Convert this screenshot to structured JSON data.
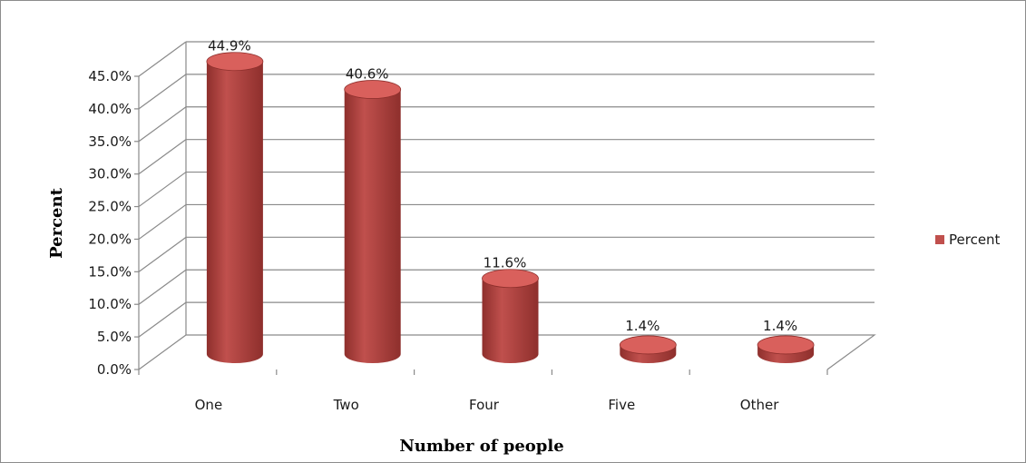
{
  "chart_data": {
    "type": "bar",
    "style": "3d-cylinder",
    "categories": [
      "One",
      "Two",
      "Four",
      "Five",
      "Other"
    ],
    "series": [
      {
        "name": "Percent",
        "values": [
          44.9,
          40.6,
          11.6,
          1.4,
          1.4
        ]
      }
    ],
    "data_labels": [
      "44.9%",
      "40.6%",
      "11.6%",
      "1.4%",
      "1.4%"
    ],
    "xlabel": "Number of people",
    "ylabel": "Percent",
    "ylim": [
      0,
      45
    ],
    "yticks": [
      0,
      5,
      10,
      15,
      20,
      25,
      30,
      35,
      40,
      45
    ],
    "ytick_labels": [
      "0.0%",
      "5.0%",
      "10.0%",
      "15.0%",
      "20.0%",
      "25.0%",
      "30.0%",
      "35.0%",
      "40.0%",
      "45.0%"
    ],
    "grid": true,
    "legend_position": "right",
    "colors": {
      "bar": "#c0504d",
      "bar_dark": "#8e2f2c",
      "bar_top": "#d9605c",
      "grid": "#8a8a8a"
    }
  }
}
